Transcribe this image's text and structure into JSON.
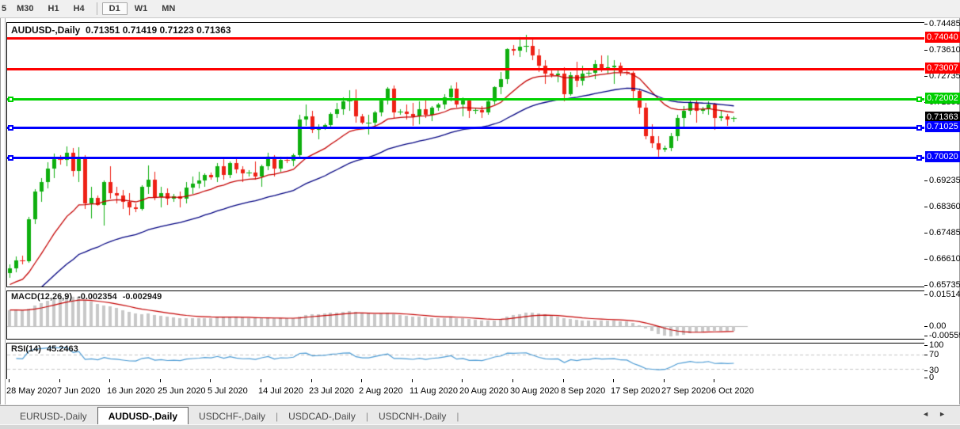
{
  "toolbar": {
    "buttons": [
      {
        "label": "5",
        "active": false,
        "partial": true
      },
      {
        "label": "M30",
        "active": false
      },
      {
        "label": "H1",
        "active": false
      },
      {
        "label": "H4",
        "active": false
      },
      {
        "type": "separator"
      },
      {
        "label": "D1",
        "active": true
      },
      {
        "label": "W1",
        "active": false
      },
      {
        "label": "MN",
        "active": false
      }
    ]
  },
  "window": {
    "title_overlay": {
      "symbol": "AUDUSD-,Daily",
      "ohlc": "0.71351 0.71419 0.71223 0.71363"
    }
  },
  "chart_data": {
    "type": "candlestick",
    "symbol": "AUDUSD",
    "timeframe": "Daily",
    "current_bar": {
      "open": 0.71351,
      "high": 0.71419,
      "low": 0.71223,
      "close": 0.71363
    },
    "x_axis": {
      "labels": [
        "28 May 2020",
        "7 Jun 2020",
        "16 Jun 2020",
        "25 Jun 2020",
        "5 Jul 2020",
        "14 Jul 2020",
        "23 Jul 2020",
        "2 Aug 2020",
        "11 Aug 2020",
        "20 Aug 2020",
        "30 Aug 2020",
        "8 Sep 2020",
        "17 Sep 2020",
        "27 Sep 2020",
        "6 Oct 2020"
      ],
      "label_bar_index": [
        0,
        8,
        16,
        24,
        32,
        40,
        48,
        56,
        64,
        72,
        80,
        88,
        96,
        104,
        112
      ]
    },
    "y_axis": {
      "visible_ticks": [
        0.74485,
        0.7361,
        0.72735,
        0.7186,
        0.69235,
        0.6836,
        0.67485,
        0.6661,
        0.65735
      ],
      "tick_step": 0.00875
    },
    "price_badges": [
      {
        "label": "0.74040",
        "price": 0.7404,
        "color_key": "badge_red",
        "name": "resistance-level"
      },
      {
        "label": "0.73007",
        "price": 0.73007,
        "color_key": "badge_red",
        "name": "resistance-level"
      },
      {
        "label": "0.72002",
        "price": 0.72002,
        "color_key": "badge_green",
        "name": "pivot-level"
      },
      {
        "label": "0.71363",
        "price": 0.71363,
        "color_key": "badge_black",
        "name": "current-price"
      },
      {
        "label": "0.71025",
        "price": 0.71025,
        "color_key": "badge_blue",
        "name": "support-level"
      },
      {
        "label": "0.70020",
        "price": 0.7002,
        "color_key": "badge_blue",
        "name": "support-level"
      }
    ],
    "horizontal_lines": [
      {
        "price": 0.7404,
        "color_key": "line_red",
        "handles": false
      },
      {
        "price": 0.73007,
        "color_key": "line_red",
        "handles": false
      },
      {
        "price": 0.72002,
        "color_key": "line_green",
        "handles": true
      },
      {
        "price": 0.71025,
        "color_key": "line_blue",
        "handles": true
      },
      {
        "price": 0.7002,
        "color_key": "line_blue",
        "handles": true
      }
    ],
    "moving_averages": [
      {
        "name": "ma-fast",
        "period": 16,
        "seed": 0.657,
        "color_key": "ma_fast"
      },
      {
        "name": "ma-slow",
        "period": 40,
        "seed": 0.65,
        "color_key": "ma_slow"
      }
    ],
    "macd": {
      "label": "MACD(12,26,9)",
      "value": "-0.002354",
      "signal_value": "-0.002949",
      "params": {
        "fast": 12,
        "slow": 26,
        "signal": 9,
        "fast_seed": 0.6593,
        "slow_seed": 0.6513
      },
      "scale_labels": [
        "0.015142",
        "0.00",
        "-0.005595"
      ]
    },
    "rsi": {
      "label": "RSI(14)",
      "value": "45.2463",
      "period": 14,
      "scale_labels": [
        "100",
        "70",
        "30",
        "0"
      ],
      "levels": [
        70,
        30
      ]
    },
    "bars": [
      [
        "05-28",
        0.6615,
        0.6646,
        0.6601,
        0.6633
      ],
      [
        "05-29",
        0.6633,
        0.6672,
        0.6618,
        0.6658
      ],
      [
        "05-31",
        0.6658,
        0.6675,
        0.6645,
        0.6655
      ],
      [
        "06-01",
        0.6655,
        0.6803,
        0.665,
        0.6795
      ],
      [
        "06-02",
        0.6795,
        0.6898,
        0.678,
        0.689
      ],
      [
        "06-03",
        0.689,
        0.6935,
        0.6855,
        0.692
      ],
      [
        "06-04",
        0.692,
        0.6988,
        0.69,
        0.6965
      ],
      [
        "06-05",
        0.6965,
        0.7015,
        0.6935,
        0.6998
      ],
      [
        "06-07",
        0.6998,
        0.701,
        0.698,
        0.6995
      ],
      [
        "06-08",
        0.6995,
        0.704,
        0.6975,
        0.7018
      ],
      [
        "06-09",
        0.7018,
        0.7035,
        0.694,
        0.6958
      ],
      [
        "06-10",
        0.6958,
        0.7038,
        0.692,
        0.7
      ],
      [
        "06-11",
        0.7,
        0.701,
        0.6832,
        0.685
      ],
      [
        "06-12",
        0.685,
        0.6905,
        0.68,
        0.6868
      ],
      [
        "06-14",
        0.6868,
        0.6875,
        0.684,
        0.6845
      ],
      [
        "06-15",
        0.6845,
        0.6925,
        0.6775,
        0.692
      ],
      [
        "06-16",
        0.692,
        0.6975,
        0.6865,
        0.6885
      ],
      [
        "06-17",
        0.6885,
        0.6905,
        0.685,
        0.6875
      ],
      [
        "06-18",
        0.6875,
        0.6895,
        0.683,
        0.6855
      ],
      [
        "06-19",
        0.6855,
        0.6885,
        0.681,
        0.6835
      ],
      [
        "06-21",
        0.6835,
        0.6848,
        0.682,
        0.6832
      ],
      [
        "06-22",
        0.6832,
        0.691,
        0.6825,
        0.6905
      ],
      [
        "06-23",
        0.6905,
        0.6976,
        0.688,
        0.693
      ],
      [
        "06-24",
        0.693,
        0.6955,
        0.686,
        0.687
      ],
      [
        "06-25",
        0.687,
        0.6905,
        0.6835,
        0.6885
      ],
      [
        "06-26",
        0.6885,
        0.69,
        0.6845,
        0.6865
      ],
      [
        "06-28",
        0.6865,
        0.688,
        0.6855,
        0.6872
      ],
      [
        "06-29",
        0.6872,
        0.689,
        0.6835,
        0.6865
      ],
      [
        "06-30",
        0.6865,
        0.692,
        0.685,
        0.6902
      ],
      [
        "07-01",
        0.6902,
        0.694,
        0.688,
        0.6915
      ],
      [
        "07-02",
        0.6915,
        0.6955,
        0.69,
        0.6925
      ],
      [
        "07-03",
        0.6925,
        0.695,
        0.6905,
        0.6945
      ],
      [
        "07-05",
        0.6945,
        0.6952,
        0.693,
        0.6938
      ],
      [
        "07-06",
        0.6938,
        0.6985,
        0.692,
        0.6975
      ],
      [
        "07-07",
        0.6975,
        0.6998,
        0.693,
        0.6945
      ],
      [
        "07-08",
        0.6945,
        0.699,
        0.6935,
        0.6985
      ],
      [
        "07-09",
        0.6985,
        0.7,
        0.695,
        0.6963
      ],
      [
        "07-10",
        0.6963,
        0.6975,
        0.692,
        0.695
      ],
      [
        "07-12",
        0.695,
        0.696,
        0.694,
        0.6952
      ],
      [
        "07-13",
        0.6952,
        0.699,
        0.693,
        0.694
      ],
      [
        "07-14",
        0.694,
        0.698,
        0.6905,
        0.6975
      ],
      [
        "07-15",
        0.6975,
        0.702,
        0.696,
        0.7005
      ],
      [
        "07-16",
        0.7005,
        0.701,
        0.694,
        0.6965
      ],
      [
        "07-17",
        0.6965,
        0.7005,
        0.6955,
        0.6995
      ],
      [
        "07-19",
        0.6995,
        0.7005,
        0.6985,
        0.6992
      ],
      [
        "07-20",
        0.6992,
        0.7015,
        0.6975,
        0.701
      ],
      [
        "07-21",
        0.701,
        0.7145,
        0.7,
        0.713
      ],
      [
        "07-22",
        0.713,
        0.7182,
        0.711,
        0.714
      ],
      [
        "07-23",
        0.714,
        0.716,
        0.7085,
        0.7095
      ],
      [
        "07-24",
        0.7095,
        0.7115,
        0.7065,
        0.7105
      ],
      [
        "07-26",
        0.7105,
        0.7118,
        0.7095,
        0.7112
      ],
      [
        "07-27",
        0.7112,
        0.7155,
        0.71,
        0.715
      ],
      [
        "07-28",
        0.715,
        0.7185,
        0.7135,
        0.7165
      ],
      [
        "07-29",
        0.7165,
        0.7205,
        0.7145,
        0.719
      ],
      [
        "07-30",
        0.719,
        0.7228,
        0.716,
        0.7195
      ],
      [
        "07-31",
        0.7195,
        0.723,
        0.712,
        0.714
      ],
      [
        "08-02",
        0.714,
        0.715,
        0.7115,
        0.712
      ],
      [
        "08-03",
        0.712,
        0.7145,
        0.708,
        0.712
      ],
      [
        "08-04",
        0.712,
        0.716,
        0.7105,
        0.7155
      ],
      [
        "08-05",
        0.7155,
        0.72,
        0.714,
        0.7195
      ],
      [
        "08-06",
        0.7195,
        0.724,
        0.718,
        0.7235
      ],
      [
        "08-07",
        0.7235,
        0.7245,
        0.7135,
        0.7155
      ],
      [
        "08-09",
        0.7155,
        0.7165,
        0.7145,
        0.7158
      ],
      [
        "08-10",
        0.7158,
        0.718,
        0.713,
        0.715
      ],
      [
        "08-11",
        0.715,
        0.7185,
        0.711,
        0.714
      ],
      [
        "08-12",
        0.714,
        0.719,
        0.7115,
        0.7165
      ],
      [
        "08-13",
        0.7165,
        0.72,
        0.7135,
        0.7145
      ],
      [
        "08-14",
        0.7145,
        0.7175,
        0.7125,
        0.717
      ],
      [
        "08-16",
        0.717,
        0.7185,
        0.716,
        0.718
      ],
      [
        "08-17",
        0.718,
        0.7215,
        0.7165,
        0.7205
      ],
      [
        "08-18",
        0.7205,
        0.7245,
        0.719,
        0.7235
      ],
      [
        "08-19",
        0.7235,
        0.7255,
        0.717,
        0.718
      ],
      [
        "08-20",
        0.718,
        0.7205,
        0.714,
        0.7195
      ],
      [
        "08-21",
        0.7195,
        0.72,
        0.7135,
        0.716
      ],
      [
        "08-23",
        0.716,
        0.717,
        0.715,
        0.7162
      ],
      [
        "08-24",
        0.7162,
        0.7175,
        0.7135,
        0.7155
      ],
      [
        "08-25",
        0.7155,
        0.7195,
        0.7145,
        0.719
      ],
      [
        "08-26",
        0.719,
        0.7242,
        0.718,
        0.7238
      ],
      [
        "08-27",
        0.7238,
        0.729,
        0.7215,
        0.7265
      ],
      [
        "08-28",
        0.7265,
        0.737,
        0.725,
        0.7365
      ],
      [
        "08-30",
        0.7365,
        0.738,
        0.7345,
        0.7362
      ],
      [
        "08-31",
        0.7362,
        0.7405,
        0.734,
        0.7375
      ],
      [
        "09-01",
        0.7375,
        0.7414,
        0.7355,
        0.7378
      ],
      [
        "09-02",
        0.7378,
        0.74,
        0.733,
        0.7345
      ],
      [
        "09-03",
        0.7345,
        0.7365,
        0.729,
        0.731
      ],
      [
        "09-04",
        0.731,
        0.733,
        0.725,
        0.7285
      ],
      [
        "09-06",
        0.7285,
        0.7295,
        0.727,
        0.728
      ],
      [
        "09-07",
        0.728,
        0.73,
        0.7255,
        0.7285
      ],
      [
        "09-08",
        0.7285,
        0.7305,
        0.7192,
        0.7215
      ],
      [
        "09-09",
        0.7215,
        0.729,
        0.721,
        0.728
      ],
      [
        "09-10",
        0.728,
        0.7325,
        0.724,
        0.726
      ],
      [
        "09-11",
        0.726,
        0.731,
        0.7245,
        0.7285
      ],
      [
        "09-13",
        0.7285,
        0.7295,
        0.7275,
        0.7288
      ],
      [
        "09-14",
        0.7288,
        0.733,
        0.7265,
        0.7315
      ],
      [
        "09-15",
        0.7315,
        0.7345,
        0.729,
        0.73
      ],
      [
        "09-16",
        0.73,
        0.7345,
        0.7285,
        0.7305
      ],
      [
        "09-17",
        0.7305,
        0.733,
        0.725,
        0.731
      ],
      [
        "09-18",
        0.731,
        0.732,
        0.7275,
        0.729
      ],
      [
        "09-20",
        0.729,
        0.7295,
        0.728,
        0.7288
      ],
      [
        "09-21",
        0.7288,
        0.7292,
        0.7195,
        0.7225
      ],
      [
        "09-22",
        0.7225,
        0.7235,
        0.715,
        0.717
      ],
      [
        "09-23",
        0.717,
        0.7185,
        0.7065,
        0.7075
      ],
      [
        "09-24",
        0.7075,
        0.7115,
        0.7035,
        0.705
      ],
      [
        "09-25",
        0.705,
        0.7075,
        0.7005,
        0.703
      ],
      [
        "09-27",
        0.703,
        0.7042,
        0.7022,
        0.7035
      ],
      [
        "09-28",
        0.7035,
        0.7085,
        0.7025,
        0.7075
      ],
      [
        "09-29",
        0.7075,
        0.7145,
        0.706,
        0.7135
      ],
      [
        "09-30",
        0.7135,
        0.7175,
        0.71,
        0.716
      ],
      [
        "10-01",
        0.716,
        0.7195,
        0.7145,
        0.7185
      ],
      [
        "10-02",
        0.7185,
        0.7195,
        0.712,
        0.716
      ],
      [
        "10-04",
        0.716,
        0.7172,
        0.715,
        0.7165
      ],
      [
        "10-05",
        0.7165,
        0.719,
        0.7145,
        0.718
      ],
      [
        "10-06",
        0.718,
        0.7185,
        0.7095,
        0.7135
      ],
      [
        "10-07",
        0.7135,
        0.716,
        0.7125,
        0.714
      ],
      [
        "10-08",
        0.714,
        0.715,
        0.711,
        0.713
      ],
      [
        "10-09",
        0.71351,
        0.71419,
        0.71223,
        0.71363
      ]
    ]
  },
  "tabs": {
    "separator": "|",
    "items": [
      {
        "label": "EURUSD-,Daily",
        "active": false
      },
      {
        "label": "AUDUSD-,Daily",
        "active": true
      },
      {
        "label": "USDCHF-,Daily",
        "active": false
      },
      {
        "label": "USDCAD-,Daily",
        "active": false
      },
      {
        "label": "USDCNH-,Daily",
        "active": false
      }
    ],
    "scroll_left_icon": "◄",
    "scroll_right_icon": "►"
  },
  "colors": {
    "bull": "#0faf0f",
    "bear": "#ee2116",
    "ma_fast": "#c40000",
    "ma_slow": "#000080",
    "line_red": "#fe0000",
    "line_green": "#00d200",
    "line_blue": "#0000fe",
    "badge_red": "#fe0000",
    "badge_green": "#00cf00",
    "badge_blue": "#0000fe",
    "badge_black": "#000000",
    "macd_hist": "#c8c8c8",
    "macd_signal": "#c40000",
    "rsi_line": "#4c9bd4",
    "level_dashed": "#c4c4c4"
  }
}
